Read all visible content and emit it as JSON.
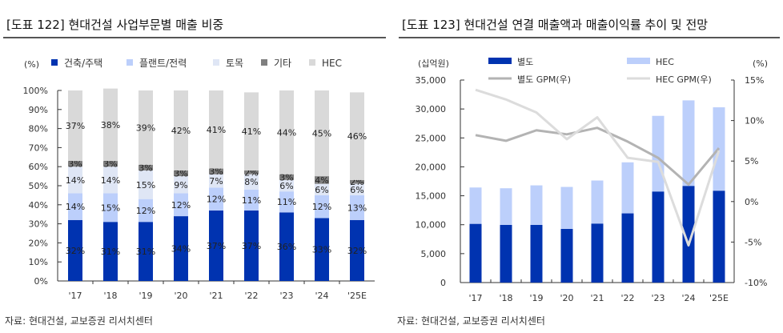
{
  "left": {
    "title": "[도표 122] 현대건설 사업부문별 매출 비중",
    "source": "자료: 현대건설, 교보증권 리서치센터"
  },
  "right": {
    "title": "[도표 123] 현대건설 연결 매출액과 매출이익률 추이 및 전망",
    "source": "자료: 현대건설, 교보증권 리서치센터"
  },
  "chart_data": [
    {
      "type": "bar",
      "stacked": true,
      "ylabel": "(%)",
      "ylim": [
        0,
        100
      ],
      "yticks": [
        "0%",
        "10%",
        "20%",
        "30%",
        "40%",
        "50%",
        "60%",
        "70%",
        "80%",
        "90%",
        "100%"
      ],
      "categories": [
        "'17",
        "'18",
        "'19",
        "'20",
        "'21",
        "'22",
        "'23",
        "'24",
        "'25E"
      ],
      "legend": "top",
      "series": [
        {
          "name": "건축/주택",
          "color": "#0033b0",
          "values": [
            32,
            31,
            31,
            34,
            37,
            37,
            36,
            33,
            32
          ]
        },
        {
          "name": "플랜트/전력",
          "color": "#bccffb",
          "values": [
            14,
            15,
            12,
            12,
            12,
            11,
            11,
            12,
            13
          ]
        },
        {
          "name": "토목",
          "color": "#dfe6f5",
          "values": [
            14,
            14,
            15,
            9,
            7,
            8,
            6,
            6,
            6
          ]
        },
        {
          "name": "기타",
          "color": "#7f7f7f",
          "values": [
            3,
            3,
            3,
            3,
            3,
            2,
            3,
            4,
            2
          ]
        },
        {
          "name": "HEC",
          "color": "#d9d9d9",
          "values": [
            37,
            38,
            39,
            42,
            41,
            41,
            44,
            45,
            46
          ]
        }
      ]
    },
    {
      "type": "bar+line",
      "stacked": true,
      "ylabel": "(십억원)",
      "y2label": "(%)",
      "ylim": [
        0,
        35000
      ],
      "y2lim": [
        -10,
        15
      ],
      "yticks": [
        "0",
        "5,000",
        "10,000",
        "15,000",
        "20,000",
        "25,000",
        "30,000",
        "35,000"
      ],
      "y2ticks": [
        "-10%",
        "-5%",
        "0%",
        "5%",
        "10%",
        "15%"
      ],
      "categories": [
        "'17",
        "'18",
        "'19",
        "'20",
        "'21",
        "'22",
        "'23",
        "'24",
        "'25E"
      ],
      "legend": "top",
      "series": [
        {
          "name": "별도",
          "kind": "bar",
          "color": "#0033b0",
          "values": [
            10150,
            9970,
            9970,
            9280,
            10200,
            11960,
            15740,
            16710,
            15880
          ]
        },
        {
          "name": "HEC",
          "kind": "bar",
          "color": "#bccffb",
          "values": [
            6280,
            6330,
            6830,
            7250,
            7440,
            8820,
            13070,
            14780,
            14410
          ]
        },
        {
          "name": "별도 GPM(우)",
          "kind": "line",
          "axis": "right",
          "color": "#b3b3b3",
          "values": [
            8.2,
            7.5,
            8.8,
            8.3,
            9.1,
            7.4,
            5.4,
            2.1,
            6.6
          ]
        },
        {
          "name": "HEC GPM(우)",
          "kind": "line",
          "axis": "right",
          "color": "#dcdcdc",
          "values": [
            13.8,
            12.6,
            11.0,
            7.7,
            10.4,
            5.4,
            4.9,
            -5.4,
            6.3
          ]
        }
      ]
    }
  ]
}
